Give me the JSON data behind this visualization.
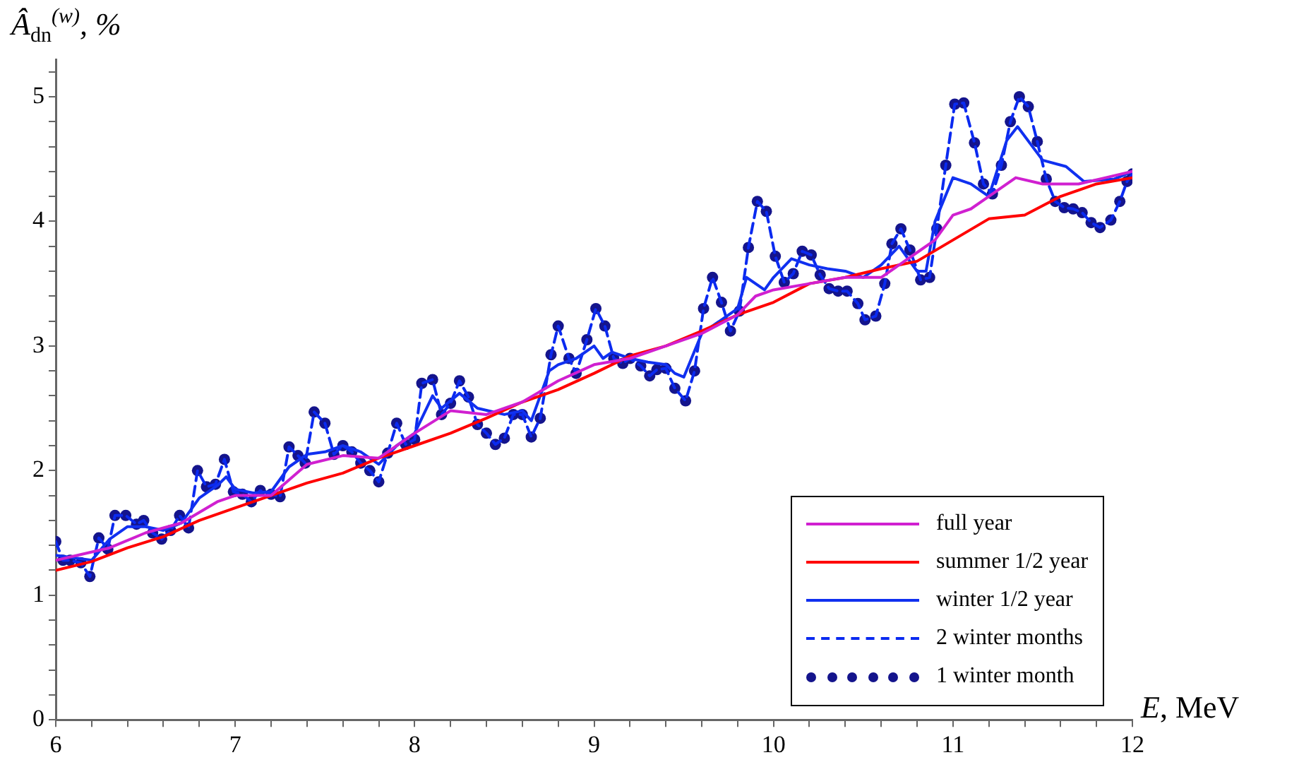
{
  "chart_data": {
    "type": "line",
    "xlabel": "E, MeV",
    "ylabel": "Â$_{dn}$$^{(w)}$, %",
    "xlim": [
      6,
      12
    ],
    "ylim": [
      0,
      5.3
    ],
    "xticks": [
      6,
      {
        "value": 6.2,
        "label": null
      },
      {
        "value": 6.4,
        "label": null
      },
      {
        "value": 6.6,
        "label": null
      },
      {
        "value": 6.8,
        "label": null
      },
      7,
      {
        "value": 7.2,
        "label": null
      },
      {
        "value": 7.4,
        "label": null
      },
      {
        "value": 7.6,
        "label": null
      },
      {
        "value": 7.8,
        "label": null
      },
      8,
      {
        "value": 8.2,
        "label": null
      },
      {
        "value": 8.4,
        "label": null
      },
      {
        "value": 8.6,
        "label": null
      },
      {
        "value": 8.8,
        "label": null
      },
      9,
      {
        "value": 9.2,
        "label": null
      },
      {
        "value": 9.4,
        "label": null
      },
      {
        "value": 9.6,
        "label": null
      },
      {
        "value": 9.8,
        "label": null
      },
      10,
      {
        "value": 10.2,
        "label": null
      },
      {
        "value": 10.4,
        "label": null
      },
      {
        "value": 10.6,
        "label": null
      },
      {
        "value": 10.8,
        "label": null
      },
      11,
      {
        "value": 11.2,
        "label": null
      },
      {
        "value": 11.4,
        "label": null
      },
      {
        "value": 11.6,
        "label": null
      },
      {
        "value": 11.8,
        "label": null
      },
      12
    ],
    "yticks": [
      0,
      {
        "value": 0.2,
        "label": null
      },
      {
        "value": 0.4,
        "label": null
      },
      {
        "value": 0.6,
        "label": null
      },
      {
        "value": 0.8,
        "label": null
      },
      1,
      {
        "value": 1.2,
        "label": null
      },
      {
        "value": 1.4,
        "label": null
      },
      {
        "value": 1.6,
        "label": null
      },
      {
        "value": 1.8,
        "label": null
      },
      2,
      {
        "value": 2.2,
        "label": null
      },
      {
        "value": 2.4,
        "label": null
      },
      {
        "value": 2.6,
        "label": null
      },
      {
        "value": 2.8,
        "label": null
      },
      3,
      {
        "value": 3.2,
        "label": null
      },
      {
        "value": 3.4,
        "label": null
      },
      {
        "value": 3.6,
        "label": null
      },
      {
        "value": 3.8,
        "label": null
      },
      4,
      {
        "value": 4.2,
        "label": null
      },
      {
        "value": 4.4,
        "label": null
      },
      {
        "value": 4.6,
        "label": null
      },
      {
        "value": 4.8,
        "label": null
      },
      5,
      {
        "value": 5.2,
        "label": null
      }
    ],
    "legend": "bottom right",
    "series": [
      {
        "name": "full year",
        "color": "#d020d0",
        "line_style": "solid",
        "x": [
          6.0,
          6.3,
          6.5,
          6.7,
          6.9,
          7.0,
          7.2,
          7.4,
          7.6,
          7.8,
          8.0,
          8.2,
          8.4,
          8.6,
          8.8,
          9.0,
          9.2,
          9.4,
          9.6,
          9.8,
          9.9,
          10.0,
          10.2,
          10.4,
          10.6,
          10.8,
          10.9,
          11.0,
          11.1,
          11.2,
          11.35,
          11.5,
          11.7,
          11.85,
          12.0
        ],
        "values": [
          1.28,
          1.38,
          1.5,
          1.58,
          1.75,
          1.8,
          1.8,
          2.05,
          2.12,
          2.1,
          2.3,
          2.48,
          2.45,
          2.55,
          2.72,
          2.85,
          2.9,
          3.0,
          3.1,
          3.25,
          3.4,
          3.45,
          3.5,
          3.55,
          3.55,
          3.75,
          3.85,
          4.05,
          4.1,
          4.2,
          4.35,
          4.3,
          4.3,
          4.35,
          4.4
        ]
      },
      {
        "name": "summer 1/2 year",
        "color": "#ff0000",
        "line_style": "solid",
        "x": [
          6.0,
          6.2,
          6.4,
          6.6,
          6.8,
          7.0,
          7.2,
          7.4,
          7.6,
          7.8,
          8.0,
          8.2,
          8.4,
          8.6,
          8.8,
          9.0,
          9.2,
          9.4,
          9.6,
          9.8,
          10.0,
          10.2,
          10.4,
          10.6,
          10.8,
          11.0,
          11.2,
          11.4,
          11.6,
          11.8,
          12.0
        ],
        "values": [
          1.2,
          1.27,
          1.38,
          1.47,
          1.6,
          1.7,
          1.8,
          1.9,
          1.98,
          2.1,
          2.2,
          2.3,
          2.42,
          2.55,
          2.65,
          2.78,
          2.92,
          3.0,
          3.12,
          3.25,
          3.35,
          3.5,
          3.55,
          3.62,
          3.68,
          3.85,
          4.02,
          4.05,
          4.2,
          4.3,
          4.35
        ]
      },
      {
        "name": "winter 1/2 year",
        "color": "#1030f0",
        "line_style": "solid",
        "x": [
          6.0,
          6.2,
          6.3,
          6.4,
          6.5,
          6.6,
          6.7,
          6.8,
          6.9,
          6.95,
          7.0,
          7.1,
          7.2,
          7.3,
          7.4,
          7.5,
          7.6,
          7.7,
          7.8,
          7.9,
          8.0,
          8.1,
          8.15,
          8.25,
          8.35,
          8.5,
          8.6,
          8.65,
          8.75,
          8.8,
          8.9,
          9.0,
          9.05,
          9.1,
          9.2,
          9.3,
          9.4,
          9.45,
          9.5,
          9.6,
          9.7,
          9.8,
          9.85,
          9.95,
          10.0,
          10.1,
          10.2,
          10.3,
          10.4,
          10.5,
          10.6,
          10.7,
          10.8,
          10.85,
          10.9,
          11.0,
          11.1,
          11.2,
          11.3,
          11.36,
          11.5,
          11.63,
          11.73,
          11.9,
          12.0
        ],
        "values": [
          1.32,
          1.28,
          1.45,
          1.55,
          1.55,
          1.52,
          1.58,
          1.78,
          1.88,
          1.95,
          1.85,
          1.82,
          1.83,
          2.03,
          2.13,
          2.15,
          2.2,
          2.15,
          2.05,
          2.2,
          2.3,
          2.6,
          2.5,
          2.62,
          2.5,
          2.45,
          2.48,
          2.4,
          2.8,
          2.85,
          2.9,
          3.0,
          2.9,
          2.95,
          2.9,
          2.87,
          2.85,
          2.78,
          2.75,
          3.1,
          3.2,
          3.3,
          3.55,
          3.45,
          3.55,
          3.7,
          3.65,
          3.62,
          3.6,
          3.55,
          3.65,
          3.8,
          3.6,
          3.6,
          4.0,
          4.35,
          4.3,
          4.2,
          4.65,
          4.76,
          4.49,
          4.44,
          4.32,
          4.34,
          4.4
        ]
      },
      {
        "name": "2 winter months",
        "color": "#0a2af0",
        "line_style": "dashed",
        "x": [
          6.0,
          6.04,
          6.08,
          6.14,
          6.19,
          6.24,
          6.29,
          6.33,
          6.39,
          6.45,
          6.49,
          6.54,
          6.59,
          6.64,
          6.69,
          6.74,
          6.79,
          6.84,
          6.89,
          6.94,
          6.99,
          7.04,
          7.09,
          7.14,
          7.2,
          7.25,
          7.3,
          7.35,
          7.39,
          7.44,
          7.5,
          7.55,
          7.6,
          7.65,
          7.7,
          7.75,
          7.8,
          7.85,
          7.9,
          7.95,
          8.0,
          8.04,
          8.1,
          8.15,
          8.2,
          8.25,
          8.3,
          8.35,
          8.4,
          8.45,
          8.5,
          8.55,
          8.6,
          8.65,
          8.7,
          8.76,
          8.8,
          8.86,
          8.9,
          8.96,
          9.01,
          9.06,
          9.11,
          9.16,
          9.2,
          9.26,
          9.31,
          9.35,
          9.4,
          9.45,
          9.51,
          9.56,
          9.61,
          9.66,
          9.71,
          9.76,
          9.81,
          9.86,
          9.91,
          9.96,
          10.01,
          10.06,
          10.11,
          10.16,
          10.21,
          10.26,
          10.31,
          10.36,
          10.41,
          10.47,
          10.51,
          10.57,
          10.62,
          10.66,
          10.71,
          10.76,
          10.82,
          10.87,
          10.91,
          10.96,
          11.01,
          11.06,
          11.12,
          11.17,
          11.22,
          11.27,
          11.32,
          11.37,
          11.42,
          11.47,
          11.52,
          11.57,
          11.62,
          11.67,
          11.72,
          11.77,
          11.82,
          11.88,
          11.93,
          11.97,
          12.0
        ],
        "values": [
          1.43,
          1.28,
          1.28,
          1.26,
          1.15,
          1.46,
          1.37,
          1.64,
          1.64,
          1.57,
          1.6,
          1.5,
          1.45,
          1.52,
          1.64,
          1.54,
          2.0,
          1.87,
          1.89,
          2.09,
          1.83,
          1.81,
          1.75,
          1.84,
          1.81,
          1.79,
          2.19,
          2.12,
          2.06,
          2.47,
          2.38,
          2.13,
          2.2,
          2.15,
          2.06,
          2.0,
          1.91,
          2.14,
          2.38,
          2.21,
          2.25,
          2.7,
          2.73,
          2.45,
          2.54,
          2.72,
          2.59,
          2.37,
          2.3,
          2.21,
          2.26,
          2.45,
          2.45,
          2.27,
          2.42,
          2.93,
          3.16,
          2.9,
          2.78,
          3.05,
          3.3,
          3.16,
          2.9,
          2.86,
          2.9,
          2.84,
          2.76,
          2.81,
          2.82,
          2.66,
          2.56,
          2.8,
          3.3,
          3.55,
          3.35,
          3.12,
          3.28,
          3.79,
          4.16,
          4.08,
          3.72,
          3.51,
          3.58,
          3.76,
          3.73,
          3.57,
          3.46,
          3.44,
          3.44,
          3.34,
          3.21,
          3.24,
          3.5,
          3.82,
          3.94,
          3.77,
          3.53,
          3.55,
          3.94,
          4.45,
          4.94,
          4.95,
          4.63,
          4.3,
          4.22,
          4.45,
          4.8,
          5.0,
          4.92,
          4.64,
          4.34,
          4.16,
          4.11,
          4.1,
          4.07,
          3.99,
          3.95,
          4.01,
          4.16,
          4.32,
          4.38
        ]
      },
      {
        "name": "1 winter month",
        "color": "#14148c",
        "type": "scatter",
        "marker": "circle",
        "x": [
          6.0,
          6.04,
          6.08,
          6.14,
          6.19,
          6.24,
          6.29,
          6.33,
          6.39,
          6.45,
          6.49,
          6.54,
          6.59,
          6.64,
          6.69,
          6.74,
          6.79,
          6.84,
          6.89,
          6.94,
          6.99,
          7.04,
          7.09,
          7.14,
          7.2,
          7.25,
          7.3,
          7.35,
          7.39,
          7.44,
          7.5,
          7.55,
          7.6,
          7.65,
          7.7,
          7.75,
          7.8,
          7.85,
          7.9,
          7.95,
          8.0,
          8.04,
          8.1,
          8.15,
          8.2,
          8.25,
          8.3,
          8.35,
          8.4,
          8.45,
          8.5,
          8.55,
          8.6,
          8.65,
          8.7,
          8.76,
          8.8,
          8.86,
          8.9,
          8.96,
          9.01,
          9.06,
          9.11,
          9.16,
          9.2,
          9.26,
          9.31,
          9.35,
          9.4,
          9.45,
          9.51,
          9.56,
          9.61,
          9.66,
          9.71,
          9.76,
          9.81,
          9.86,
          9.91,
          9.96,
          10.01,
          10.06,
          10.11,
          10.16,
          10.21,
          10.26,
          10.31,
          10.36,
          10.41,
          10.47,
          10.51,
          10.57,
          10.62,
          10.66,
          10.71,
          10.76,
          10.82,
          10.87,
          10.91,
          10.96,
          11.01,
          11.06,
          11.12,
          11.17,
          11.22,
          11.27,
          11.32,
          11.37,
          11.42,
          11.47,
          11.52,
          11.57,
          11.62,
          11.67,
          11.72,
          11.77,
          11.82,
          11.88,
          11.93,
          11.97,
          12.0
        ],
        "values": [
          1.43,
          1.28,
          1.28,
          1.26,
          1.15,
          1.46,
          1.37,
          1.64,
          1.64,
          1.57,
          1.6,
          1.5,
          1.45,
          1.52,
          1.64,
          1.54,
          2.0,
          1.87,
          1.89,
          2.09,
          1.83,
          1.81,
          1.75,
          1.84,
          1.81,
          1.79,
          2.19,
          2.12,
          2.06,
          2.47,
          2.38,
          2.13,
          2.2,
          2.15,
          2.06,
          2.0,
          1.91,
          2.14,
          2.38,
          2.21,
          2.25,
          2.7,
          2.73,
          2.45,
          2.54,
          2.72,
          2.59,
          2.37,
          2.3,
          2.21,
          2.26,
          2.45,
          2.45,
          2.27,
          2.42,
          2.93,
          3.16,
          2.9,
          2.78,
          3.05,
          3.3,
          3.16,
          2.9,
          2.86,
          2.9,
          2.84,
          2.76,
          2.81,
          2.82,
          2.66,
          2.56,
          2.8,
          3.3,
          3.55,
          3.35,
          3.12,
          3.28,
          3.79,
          4.16,
          4.08,
          3.72,
          3.51,
          3.58,
          3.76,
          3.73,
          3.57,
          3.46,
          3.44,
          3.44,
          3.34,
          3.21,
          3.24,
          3.5,
          3.82,
          3.94,
          3.77,
          3.53,
          3.55,
          3.94,
          4.45,
          4.94,
          4.95,
          4.63,
          4.3,
          4.22,
          4.45,
          4.8,
          5.0,
          4.92,
          4.64,
          4.34,
          4.16,
          4.11,
          4.1,
          4.07,
          3.99,
          3.95,
          4.01,
          4.16,
          4.32,
          4.38
        ]
      }
    ]
  }
}
